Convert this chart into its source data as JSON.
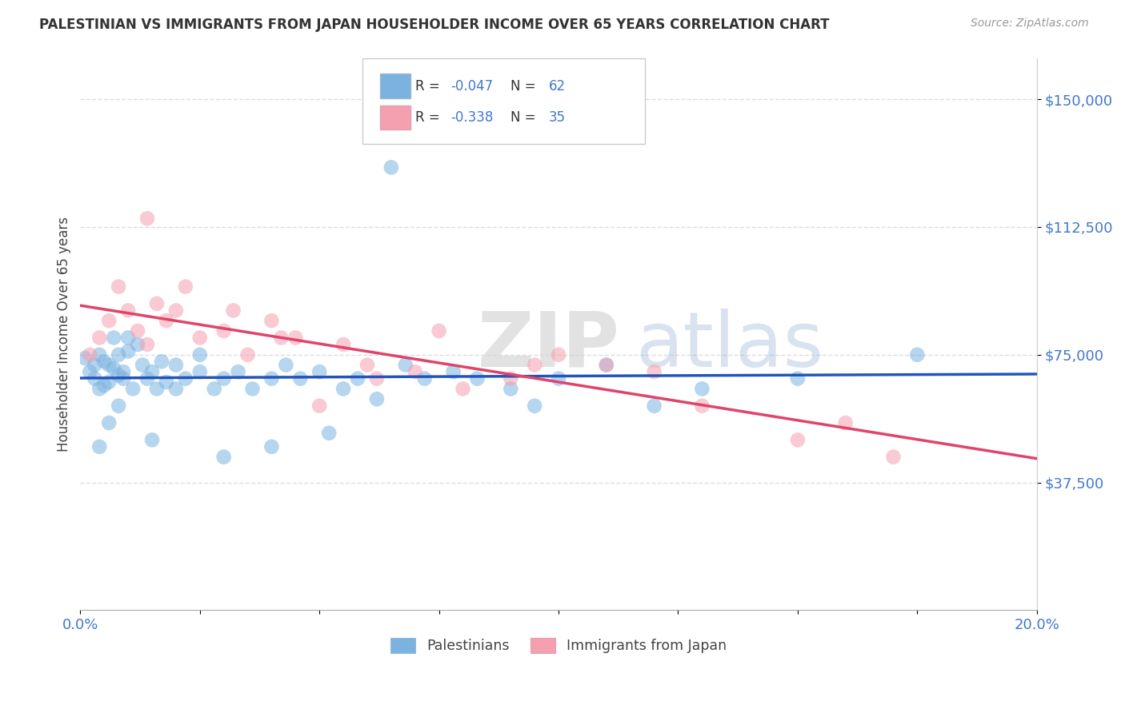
{
  "title": "PALESTINIAN VS IMMIGRANTS FROM JAPAN HOUSEHOLDER INCOME OVER 65 YEARS CORRELATION CHART",
  "source": "Source: ZipAtlas.com",
  "ylabel": "Householder Income Over 65 years",
  "xlim": [
    0.0,
    0.2
  ],
  "ylim": [
    0,
    162000
  ],
  "ytick_vals": [
    37500,
    75000,
    112500,
    150000
  ],
  "ytick_labels": [
    "$37,500",
    "$75,000",
    "$112,500",
    "$150,000"
  ],
  "xtick_vals": [
    0.0,
    0.025,
    0.05,
    0.075,
    0.1,
    0.125,
    0.15,
    0.175,
    0.2
  ],
  "xtick_labels": [
    "0.0%",
    "",
    "",
    "",
    "",
    "",
    "",
    "",
    "20.0%"
  ],
  "grid_color": "#dddddd",
  "bg_color": "#ffffff",
  "blue_scatter_color": "#7ab3e0",
  "pink_scatter_color": "#f5a0b0",
  "blue_line_color": "#2255bb",
  "pink_line_color": "#e0446a",
  "tick_label_color": "#4477cc",
  "legend_label_blue": "Palestinians",
  "legend_label_pink": "Immigrants from Japan",
  "watermark": "ZIPatlas",
  "blue_x": [
    0.001,
    0.002,
    0.003,
    0.003,
    0.004,
    0.004,
    0.005,
    0.005,
    0.006,
    0.006,
    0.007,
    0.007,
    0.008,
    0.008,
    0.009,
    0.009,
    0.01,
    0.011,
    0.012,
    0.013,
    0.014,
    0.015,
    0.016,
    0.017,
    0.018,
    0.02,
    0.022,
    0.025,
    0.028,
    0.03,
    0.033,
    0.036,
    0.04,
    0.043,
    0.046,
    0.05,
    0.055,
    0.058,
    0.062,
    0.068,
    0.072,
    0.078,
    0.083,
    0.09,
    0.095,
    0.1,
    0.11,
    0.12,
    0.13,
    0.15,
    0.004,
    0.006,
    0.008,
    0.01,
    0.015,
    0.02,
    0.025,
    0.03,
    0.04,
    0.052,
    0.175,
    0.065
  ],
  "blue_y": [
    74000,
    70000,
    68000,
    72000,
    65000,
    75000,
    66000,
    73000,
    67000,
    72000,
    80000,
    71000,
    69000,
    75000,
    68000,
    70000,
    76000,
    65000,
    78000,
    72000,
    68000,
    70000,
    65000,
    73000,
    67000,
    72000,
    68000,
    70000,
    65000,
    68000,
    70000,
    65000,
    68000,
    72000,
    68000,
    70000,
    65000,
    68000,
    62000,
    72000,
    68000,
    70000,
    68000,
    65000,
    60000,
    68000,
    72000,
    60000,
    65000,
    68000,
    48000,
    55000,
    60000,
    80000,
    50000,
    65000,
    75000,
    45000,
    48000,
    52000,
    75000,
    130000
  ],
  "pink_x": [
    0.002,
    0.004,
    0.006,
    0.008,
    0.01,
    0.012,
    0.014,
    0.016,
    0.018,
    0.02,
    0.025,
    0.03,
    0.035,
    0.04,
    0.045,
    0.05,
    0.06,
    0.07,
    0.08,
    0.09,
    0.1,
    0.11,
    0.12,
    0.13,
    0.014,
    0.022,
    0.032,
    0.042,
    0.055,
    0.075,
    0.095,
    0.15,
    0.16,
    0.17,
    0.062
  ],
  "pink_y": [
    75000,
    80000,
    85000,
    95000,
    88000,
    82000,
    78000,
    90000,
    85000,
    88000,
    80000,
    82000,
    75000,
    85000,
    80000,
    60000,
    72000,
    70000,
    65000,
    68000,
    75000,
    72000,
    70000,
    60000,
    115000,
    95000,
    88000,
    80000,
    78000,
    82000,
    72000,
    50000,
    55000,
    45000,
    68000
  ]
}
